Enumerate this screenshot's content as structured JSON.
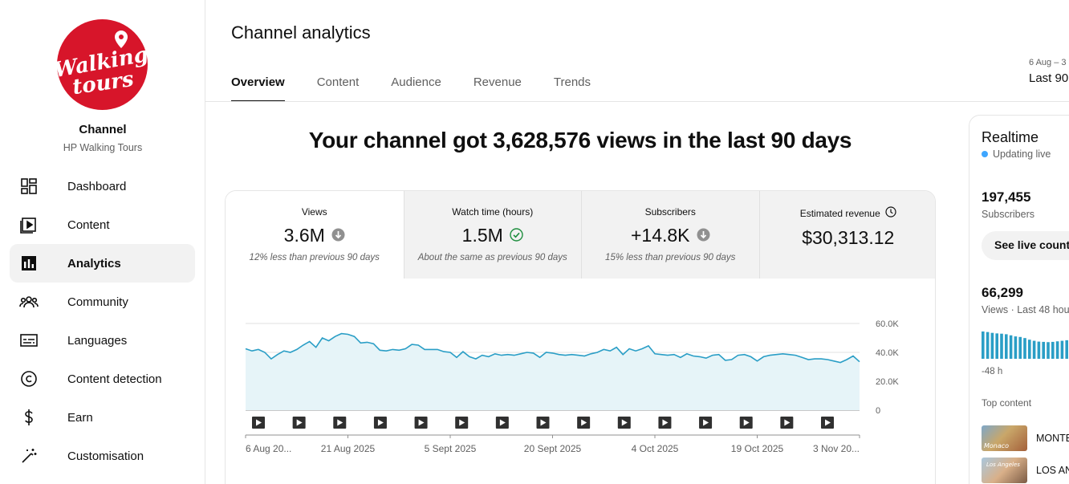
{
  "sidebar": {
    "channel_title": "Channel",
    "channel_name": "HP Walking Tours",
    "logo_text_1": "Walking",
    "logo_text_2": "tours",
    "items": [
      {
        "label": "Dashboard",
        "icon": "dashboard-icon"
      },
      {
        "label": "Content",
        "icon": "content-icon"
      },
      {
        "label": "Analytics",
        "icon": "analytics-icon",
        "active": true
      },
      {
        "label": "Community",
        "icon": "community-icon"
      },
      {
        "label": "Languages",
        "icon": "languages-icon"
      },
      {
        "label": "Content detection",
        "icon": "copyright-icon"
      },
      {
        "label": "Earn",
        "icon": "dollar-icon"
      },
      {
        "label": "Customisation",
        "icon": "magic-wand-icon"
      }
    ]
  },
  "header": {
    "title": "Channel analytics",
    "tabs": [
      "Overview",
      "Content",
      "Audience",
      "Revenue",
      "Trends"
    ],
    "active_tab": "Overview",
    "date_range_dates": "6 Aug – 3",
    "date_range_label": "Last 90"
  },
  "main": {
    "headline": "Your channel got 3,628,576 views in the last 90 days",
    "metrics": [
      {
        "label": "Views",
        "value": "3.6M",
        "status": "down",
        "note": "12% less than previous 90 days"
      },
      {
        "label": "Watch time (hours)",
        "value": "1.5M",
        "status": "same",
        "note": "About the same as previous 90 days"
      },
      {
        "label": "Subscribers",
        "value": "+14.8K",
        "status": "down",
        "note": "15% less than previous 90 days"
      },
      {
        "label": "Estimated revenue",
        "value": "$30,313.12",
        "status": "none",
        "note": ""
      }
    ]
  },
  "chart_data": {
    "type": "area",
    "series": [
      {
        "values": [
          42500,
          41000,
          42000,
          40000,
          35500,
          38500,
          41000,
          40000,
          42000,
          45000,
          47500,
          43500,
          50000,
          48000,
          51000,
          53000,
          52500,
          51000,
          46500,
          47000,
          46000,
          41500,
          41000,
          42000,
          41500,
          42500,
          45500,
          45000,
          42000,
          42000,
          42000,
          40500,
          40000,
          36500,
          40500,
          37000,
          35500,
          38000,
          37000,
          39000,
          38000,
          38500,
          38000,
          39000,
          40000,
          39500,
          36500,
          40000,
          39500,
          38500,
          38000,
          38500,
          38000,
          37500,
          39000,
          40000,
          42000,
          41000,
          43500,
          38500,
          42500,
          41000,
          42500,
          44500,
          39000,
          38500,
          38000,
          38500,
          36500,
          39000,
          37500,
          37000,
          36000,
          38000,
          38500,
          34500,
          35000,
          38000,
          38500,
          37000,
          34000,
          37000,
          38000,
          38500,
          39000,
          38500,
          38000,
          36500,
          35000,
          35500,
          35500,
          35000,
          34000,
          33000,
          35000,
          37500,
          33500
        ]
      }
    ],
    "x_labels": [
      "6 Aug 20...",
      "21 Aug 2025",
      "5 Sept 2025",
      "20 Sept 2025",
      "4 Oct 2025",
      "19 Oct 2025",
      "3 Nov 20..."
    ],
    "y_ticks": [
      "60.0K",
      "40.0K",
      "20.0K",
      "0"
    ],
    "ylim": [
      0,
      60000
    ],
    "video_marker_count": 15,
    "grid": true,
    "line_color": "#2a9ec6",
    "fill_color": "#e6f4f8"
  },
  "realtime": {
    "title": "Realtime",
    "status": "Updating live",
    "subscribers_value": "197,455",
    "subscribers_label": "Subscribers",
    "button_label": "See live count",
    "views_value": "66,299",
    "views_label": "Views · Last 48 hou",
    "bar_values": [
      100,
      98,
      95,
      93,
      92,
      90,
      86,
      82,
      80,
      76,
      70,
      66,
      63,
      62,
      61,
      62,
      64,
      66,
      68,
      70,
      72
    ],
    "bars_color": "#2a9ec6",
    "axis_start": "-48 h",
    "top_content_label": "Top content",
    "top_items": [
      {
        "title": "MONTE",
        "thumb_caption": "Monaco"
      },
      {
        "title": "LOS AN",
        "thumb_caption": "Los Angeles"
      }
    ]
  },
  "colors": {
    "brand": "#d7152a",
    "accent": "#3ea6ff",
    "success": "#1e8e3e",
    "muted": "#606060"
  }
}
